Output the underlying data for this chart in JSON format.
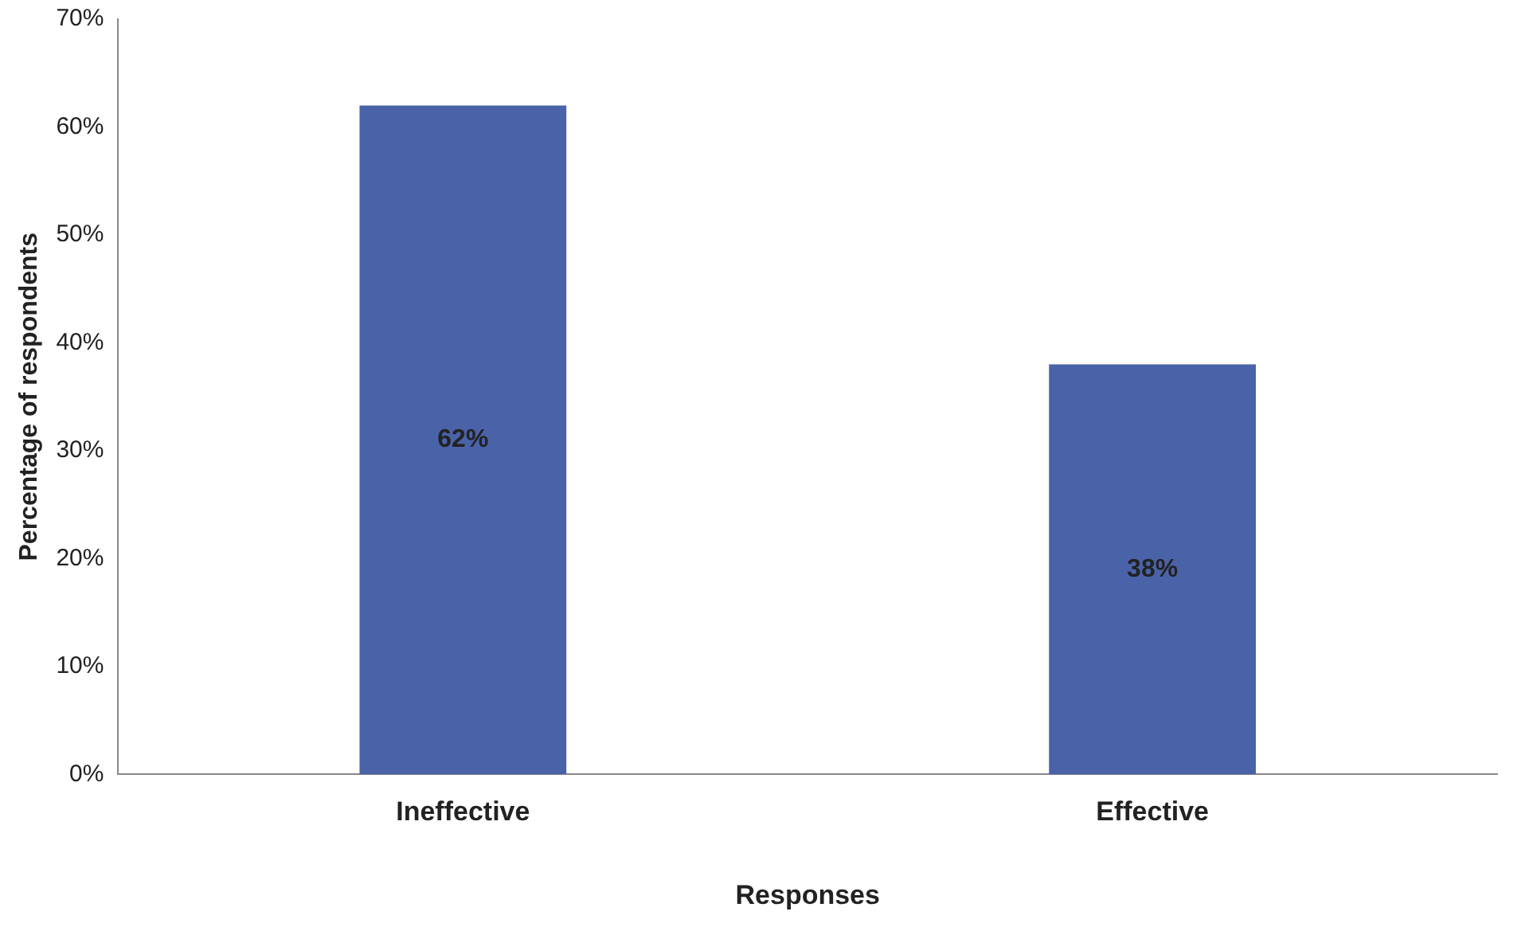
{
  "chart_data": {
    "type": "bar",
    "xlabel": "Responses",
    "ylabel": "Percentage of respondents",
    "categories": [
      "Ineffective",
      "Effective"
    ],
    "values": [
      62,
      38
    ],
    "color": "#4a62a8",
    "value_labels": [
      "62%",
      "38%"
    ],
    "ylim": [
      0,
      70
    ],
    "yticks": [
      {
        "value": 0,
        "label": "0%"
      },
      {
        "value": 10,
        "label": "10%"
      },
      {
        "value": 20,
        "label": "20%"
      },
      {
        "value": 30,
        "label": "30%"
      },
      {
        "value": 40,
        "label": "40%"
      },
      {
        "value": 50,
        "label": "50%"
      },
      {
        "value": 60,
        "label": "60%"
      },
      {
        "value": 70,
        "label": "70%"
      }
    ],
    "grid": false,
    "legend": false
  }
}
